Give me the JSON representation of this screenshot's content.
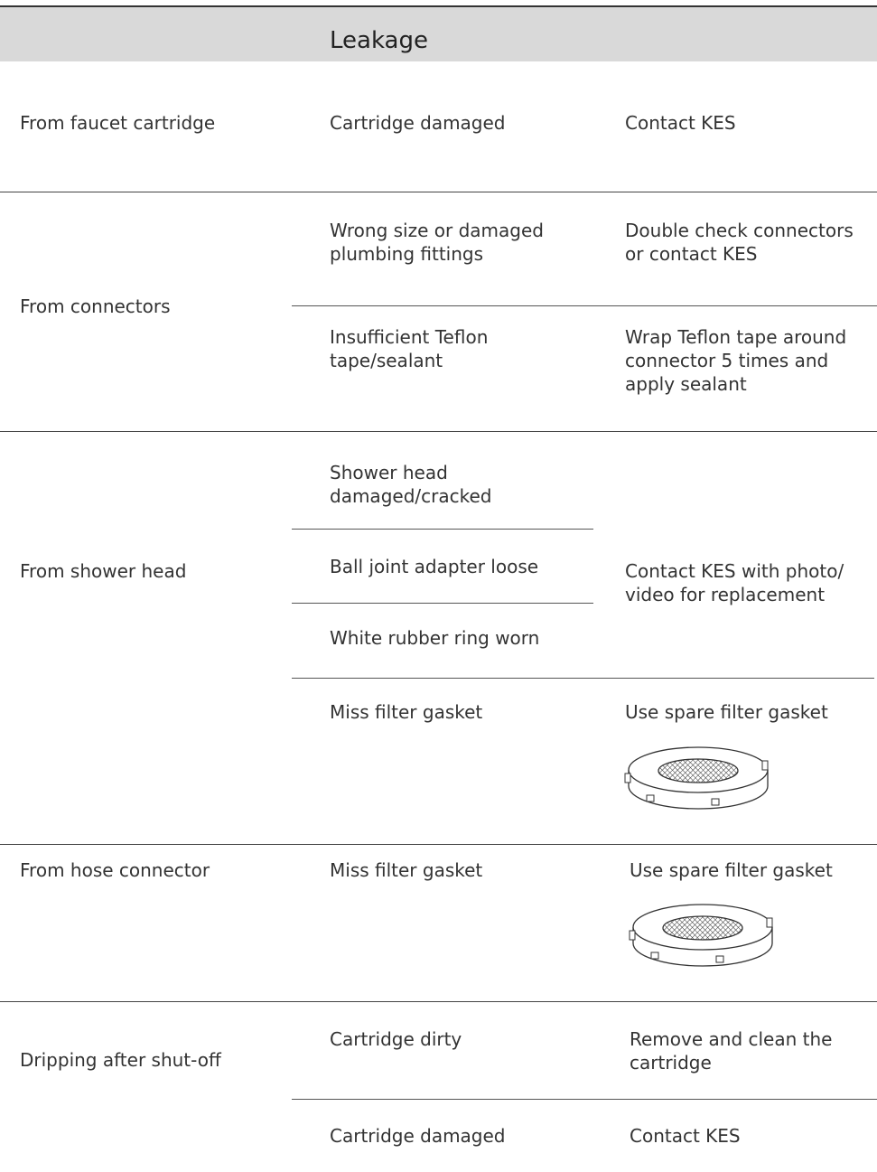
{
  "header": {
    "title": "Leakage"
  },
  "rows": [
    {
      "problem": [
        "From faucet cartridge"
      ],
      "groups": [
        {
          "causes": [
            [
              "Cartridge damaged"
            ]
          ],
          "solution": [
            "Contact KES"
          ]
        }
      ]
    },
    {
      "problem": [
        "From connectors"
      ],
      "groups": [
        {
          "causes": [
            [
              "Wrong size or damaged",
              "plumbing fittings"
            ]
          ],
          "solution": [
            "Double check connectors",
            "or contact KES"
          ]
        },
        {
          "causes": [
            [
              "Insufficient Teflon",
              "tape/sealant"
            ]
          ],
          "solution": [
            "Wrap Teflon tape around",
            "connector 5 times and",
            "apply sealant"
          ]
        }
      ]
    },
    {
      "problem": [
        "From shower head"
      ],
      "groups": [
        {
          "causes": [
            [
              "Shower head",
              "damaged/cracked"
            ],
            [
              "Ball joint adapter loose"
            ],
            [
              "White rubber ring worn"
            ]
          ],
          "solution": [
            "Contact KES with photo/",
            "video for replacement"
          ]
        },
        {
          "causes": [
            [
              "Miss filter gasket"
            ]
          ],
          "solution": [
            "Use spare filter gasket"
          ]
        }
      ]
    },
    {
      "problem": [
        "From hose connector"
      ],
      "groups": [
        {
          "causes": [
            [
              "Miss filter gasket"
            ]
          ],
          "solution": [
            "Use spare filter gasket"
          ]
        }
      ]
    },
    {
      "problem": [
        "Dripping after shut-off"
      ],
      "groups": [
        {
          "causes": [
            [
              "Cartridge dirty"
            ]
          ],
          "solution": [
            "Remove and clean the",
            "cartridge"
          ]
        },
        {
          "causes": [
            [
              "Cartridge damaged"
            ]
          ],
          "solution": [
            "Contact KES"
          ]
        }
      ]
    }
  ]
}
